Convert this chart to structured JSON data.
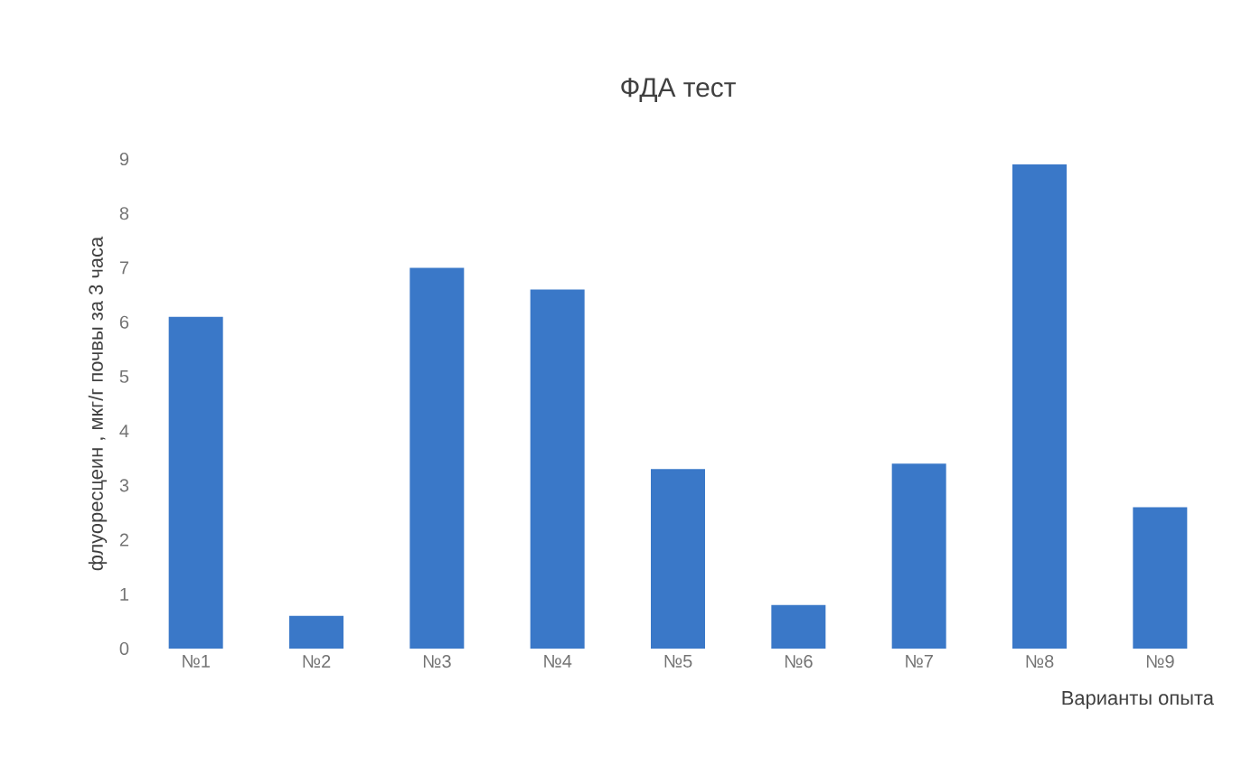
{
  "chart_data": {
    "type": "bar",
    "title": "ФДА тест",
    "xlabel": "Варианты опыта",
    "ylabel": "флуоресцеин , мкг/г почвы за 3 часа",
    "categories": [
      "№1",
      "№2",
      "№3",
      "№4",
      "№5",
      "№6",
      "№7",
      "№8",
      "№9"
    ],
    "values": [
      6.1,
      0.6,
      7.0,
      6.6,
      3.3,
      0.8,
      3.4,
      8.9,
      2.6
    ],
    "color": "#3a78c8",
    "ylim": [
      0,
      9
    ],
    "yticks": [
      0,
      1,
      2,
      3,
      4,
      5,
      6,
      7,
      8,
      9
    ]
  }
}
